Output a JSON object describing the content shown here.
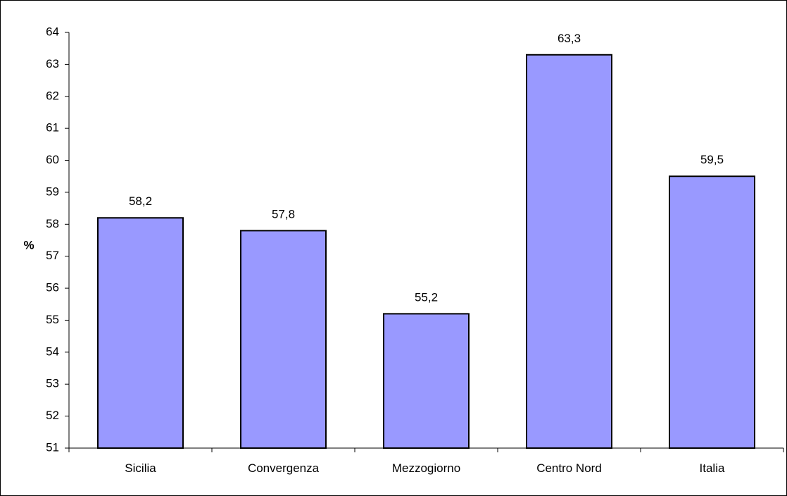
{
  "chart_data": {
    "type": "bar",
    "title": "",
    "xlabel": "",
    "ylabel": "%",
    "categories": [
      "Sicilia",
      "Convergenza",
      "Mezzogiorno",
      "Centro Nord",
      "Italia"
    ],
    "values": [
      58.2,
      57.8,
      55.2,
      63.3,
      59.5
    ],
    "value_labels": [
      "58,2",
      "57,8",
      "55,2",
      "63,3",
      "59,5"
    ],
    "ylim": [
      51,
      64
    ],
    "yticks": [
      "51",
      "52",
      "53",
      "54",
      "55",
      "56",
      "57",
      "58",
      "59",
      "60",
      "61",
      "62",
      "63",
      "64"
    ],
    "grid": false,
    "legend": "none",
    "bar_color": "#9999ff",
    "bar_edge_color": "#000000"
  }
}
